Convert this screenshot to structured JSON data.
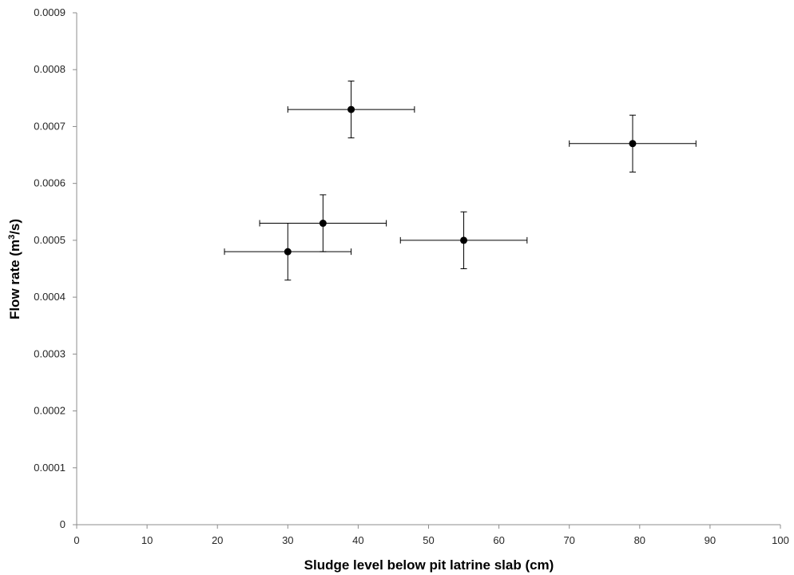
{
  "chart_data": {
    "type": "scatter",
    "xlabel": "Sludge level below pit latrine slab (cm)",
    "ylabel_main": "Flow rate (m",
    "ylabel_sup": "3",
    "ylabel_end": "/s)",
    "xlim": [
      0,
      100
    ],
    "ylim": [
      0,
      0.0009
    ],
    "x_ticks": [
      0,
      10,
      20,
      30,
      40,
      50,
      60,
      70,
      80,
      90,
      100
    ],
    "y_ticks": [
      0,
      0.0001,
      0.0002,
      0.0003,
      0.0004,
      0.0005,
      0.0006,
      0.0007,
      0.0008,
      0.0009
    ],
    "x_tick_labels": [
      "0",
      "10",
      "20",
      "30",
      "40",
      "50",
      "60",
      "70",
      "80",
      "90",
      "100"
    ],
    "y_tick_labels": [
      "0",
      "0.0001",
      "0.0002",
      "0.0003",
      "0.0004",
      "0.0005",
      "0.0006",
      "0.0007",
      "0.0008",
      "0.0009"
    ],
    "grid": false,
    "legend": "none",
    "marker_color": "#000000",
    "axis_color": "#8c8c8c",
    "points": [
      {
        "x": 30,
        "y": 0.00048,
        "x_err": 9,
        "y_err": 5e-05
      },
      {
        "x": 35,
        "y": 0.00053,
        "x_err": 9,
        "y_err": 5e-05
      },
      {
        "x": 39,
        "y": 0.00073,
        "x_err": 9,
        "y_err": 5e-05
      },
      {
        "x": 55,
        "y": 0.0005,
        "x_err": 9,
        "y_err": 5e-05
      },
      {
        "x": 79,
        "y": 0.00067,
        "x_err": 9,
        "y_err": 5e-05
      }
    ]
  }
}
